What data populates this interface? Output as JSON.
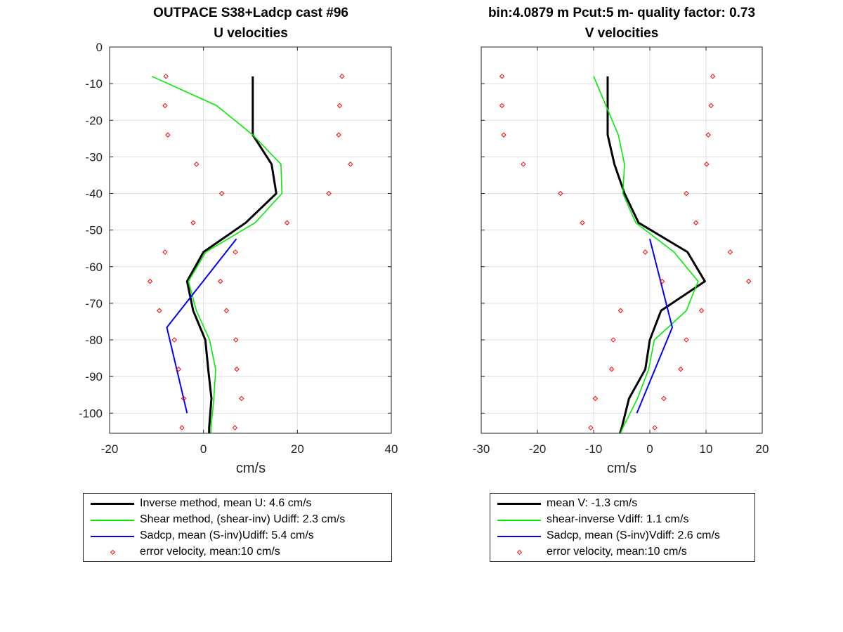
{
  "chart_data": [
    {
      "type": "line",
      "title": "OUTPACE S38+Ladcp cast #96",
      "subtitle": "U velocities",
      "xlabel": "cm/s",
      "ylabel": "",
      "xlim": [
        -20,
        40
      ],
      "ylim": [
        -105.5,
        0
      ],
      "xticks": [
        -20,
        0,
        20,
        40
      ],
      "yticks": [
        0,
        -10,
        -20,
        -30,
        -40,
        -50,
        -60,
        -70,
        -80,
        -90,
        -100
      ],
      "grid": true,
      "legend_position": "below",
      "series": [
        {
          "name": "Inverse method, mean U:  4.6 cm/s",
          "style": "line",
          "color": "#000000",
          "width": 3,
          "points": [
            [
              10.5,
              -8
            ],
            [
              10.5,
              -16
            ],
            [
              10.5,
              -24
            ],
            [
              14.5,
              -32
            ],
            [
              15.5,
              -40
            ],
            [
              9,
              -48
            ],
            [
              0,
              -56
            ],
            [
              -3.5,
              -64
            ],
            [
              -2.2,
              -72
            ],
            [
              0.4,
              -80
            ],
            [
              1,
              -88
            ],
            [
              1.7,
              -96
            ],
            [
              1.2,
              -104
            ],
            [
              1.2,
              -105.5
            ]
          ]
        },
        {
          "name": "Shear method, (shear-inv)  Udiff:  2.3 cm/s",
          "style": "line",
          "color": "#00ee00",
          "width": 1.6,
          "points": [
            [
              -11,
              -8
            ],
            [
              2.8,
              -16
            ],
            [
              10.5,
              -24
            ],
            [
              16.5,
              -32
            ],
            [
              16.7,
              -40
            ],
            [
              11,
              -48
            ],
            [
              0.5,
              -56
            ],
            [
              -3.2,
              -64
            ],
            [
              -1.5,
              -72
            ],
            [
              1.3,
              -80
            ],
            [
              2.6,
              -88
            ],
            [
              2.2,
              -96
            ],
            [
              1.6,
              -104
            ],
            [
              1.6,
              -105.5
            ]
          ]
        },
        {
          "name": "Sadcp, mean (S-inv)Udiff: 5.4 cm/s",
          "style": "line",
          "color": "#0000ff",
          "width": 2,
          "points": [
            [
              7,
              -52.4
            ],
            [
              -7.8,
              -76.6
            ],
            [
              -3.5,
              -100
            ]
          ]
        },
        {
          "name": "error velocity, mean:10 cm/s",
          "style": "markers",
          "color": "#ff0000",
          "points": [
            [
              -8,
              -8
            ],
            [
              29.5,
              -8
            ],
            [
              -8.2,
              -16
            ],
            [
              29,
              -16
            ],
            [
              -7.6,
              -24
            ],
            [
              28.8,
              -24
            ],
            [
              -1.5,
              -32
            ],
            [
              31.3,
              -32
            ],
            [
              3.9,
              -40
            ],
            [
              26.7,
              -40
            ],
            [
              -2.2,
              -48
            ],
            [
              17.8,
              -48
            ],
            [
              -8.2,
              -56
            ],
            [
              6.8,
              -56
            ],
            [
              -11.4,
              -64
            ],
            [
              3.6,
              -64
            ],
            [
              -9.4,
              -72
            ],
            [
              4.9,
              -72
            ],
            [
              -6.2,
              -80
            ],
            [
              6.9,
              -80
            ],
            [
              -5.3,
              -88
            ],
            [
              7.1,
              -88
            ],
            [
              -4.2,
              -96
            ],
            [
              8.1,
              -96
            ],
            [
              -4.6,
              -104
            ],
            [
              6.7,
              -104
            ]
          ]
        }
      ]
    },
    {
      "type": "line",
      "title": "bin:4.0879 m  Pcut:5 m- quality factor:  0.73",
      "subtitle": "V velocities",
      "xlabel": "cm/s",
      "ylabel": "",
      "xlim": [
        -30,
        20
      ],
      "ylim": [
        -105.5,
        0
      ],
      "xticks": [
        -30,
        -20,
        -10,
        0,
        10,
        20
      ],
      "yticks": [
        0,
        -10,
        -20,
        -30,
        -40,
        -50,
        -60,
        -70,
        -80,
        -90,
        -100
      ],
      "grid": true,
      "legend_position": "below",
      "series": [
        {
          "name": "mean V:  -1.3 cm/s",
          "style": "line",
          "color": "#000000",
          "width": 3,
          "points": [
            [
              -7.5,
              -8
            ],
            [
              -7.5,
              -16
            ],
            [
              -7.5,
              -24
            ],
            [
              -6.3,
              -32
            ],
            [
              -4.5,
              -40
            ],
            [
              -2,
              -48
            ],
            [
              6.7,
              -56
            ],
            [
              9.8,
              -64
            ],
            [
              2,
              -72
            ],
            [
              0,
              -80
            ],
            [
              -0.8,
              -88
            ],
            [
              -3.7,
              -96
            ],
            [
              -5,
              -104
            ],
            [
              -5.3,
              -105.5
            ]
          ]
        },
        {
          "name": "shear-inverse Vdiff:  1.1 cm/s",
          "style": "line",
          "color": "#00ee00",
          "width": 1.6,
          "points": [
            [
              -10,
              -8
            ],
            [
              -7.8,
              -16
            ],
            [
              -5.6,
              -24
            ],
            [
              -4.5,
              -32
            ],
            [
              -4.8,
              -40
            ],
            [
              -2.5,
              -48
            ],
            [
              4.3,
              -56
            ],
            [
              8.6,
              -64
            ],
            [
              6.5,
              -72
            ],
            [
              0.8,
              -80
            ],
            [
              -0.2,
              -88
            ],
            [
              -2.2,
              -96
            ],
            [
              -4.8,
              -104
            ],
            [
              -5.2,
              -105.5
            ]
          ]
        },
        {
          "name": "Sadcp, mean (S-inv)Vdiff: 2.6 cm/s",
          "style": "line",
          "color": "#0000ff",
          "width": 2,
          "points": [
            [
              0,
              -52.4
            ],
            [
              4,
              -76.6
            ],
            [
              -2.3,
              -100
            ]
          ]
        },
        {
          "name": "error velocity, mean:10 cm/s",
          "style": "markers",
          "color": "#ff0000",
          "points": [
            [
              -26.3,
              -8
            ],
            [
              11.2,
              -8
            ],
            [
              -26.3,
              -16
            ],
            [
              10.9,
              -16
            ],
            [
              -26,
              -24
            ],
            [
              10.4,
              -24
            ],
            [
              -22.5,
              -32
            ],
            [
              10.1,
              -32
            ],
            [
              -15.9,
              -40
            ],
            [
              6.5,
              -40
            ],
            [
              -12,
              -48
            ],
            [
              8.2,
              -48
            ],
            [
              -0.8,
              -56
            ],
            [
              14.3,
              -56
            ],
            [
              2.2,
              -64
            ],
            [
              17.6,
              -64
            ],
            [
              -5.2,
              -72
            ],
            [
              9.2,
              -72
            ],
            [
              -6.5,
              -80
            ],
            [
              6.5,
              -80
            ],
            [
              -6.8,
              -88
            ],
            [
              5.5,
              -88
            ],
            [
              -9.7,
              -96
            ],
            [
              2.5,
              -96
            ],
            [
              -10.5,
              -104
            ],
            [
              0.9,
              -104
            ]
          ]
        }
      ]
    }
  ],
  "legends": [
    {
      "entries": [
        {
          "label": "Inverse method, mean U:  4.6 cm/s",
          "color": "#000000",
          "kind": "line",
          "width": 3
        },
        {
          "label": "Shear method, (shear-inv)  Udiff:  2.3 cm/s",
          "color": "#00ee00",
          "kind": "line",
          "width": 1.6
        },
        {
          "label": "Sadcp, mean (S-inv)Udiff: 5.4 cm/s",
          "color": "#0000ff",
          "kind": "line",
          "width": 2
        },
        {
          "label": "error velocity, mean:10 cm/s",
          "color": "#ff0000",
          "kind": "marker",
          "width": 1
        }
      ]
    },
    {
      "entries": [
        {
          "label": "mean V:  -1.3 cm/s",
          "color": "#000000",
          "kind": "line",
          "width": 3
        },
        {
          "label": "shear-inverse Vdiff:  1.1 cm/s",
          "color": "#00ee00",
          "kind": "line",
          "width": 1.6
        },
        {
          "label": "Sadcp, mean (S-inv)Vdiff: 2.6 cm/s",
          "color": "#0000ff",
          "kind": "line",
          "width": 2
        },
        {
          "label": "error velocity, mean:10 cm/s",
          "color": "#ff0000",
          "kind": "marker",
          "width": 1
        }
      ]
    }
  ]
}
